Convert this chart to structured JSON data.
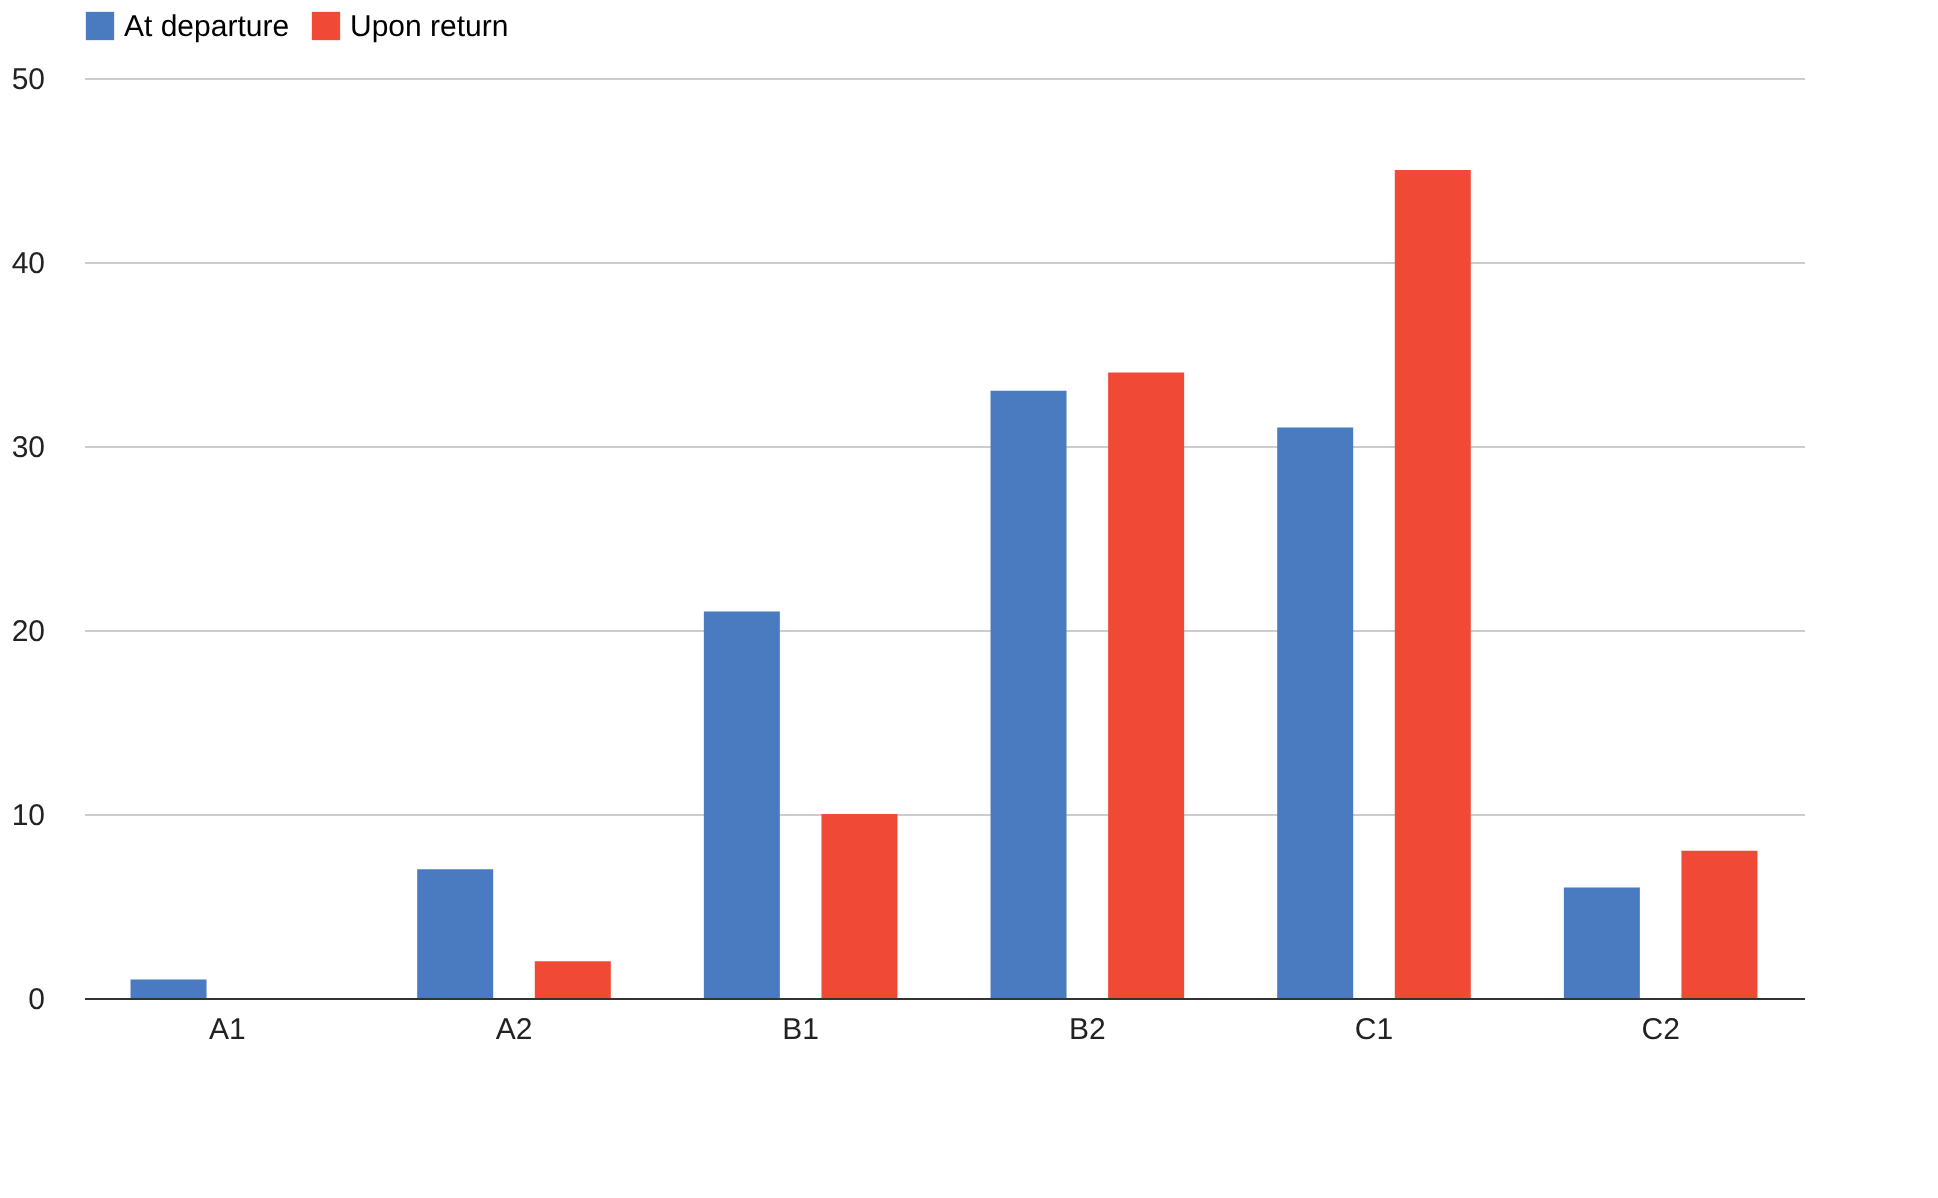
{
  "chart_data": {
    "type": "bar",
    "categories": [
      "A1",
      "A2",
      "B1",
      "B2",
      "C1",
      "C2"
    ],
    "series": [
      {
        "name": "At departure",
        "color": "#4a7bc0",
        "values": [
          1,
          7,
          21,
          33,
          31,
          6
        ]
      },
      {
        "name": "Upon return",
        "color": "#f04a36",
        "values": [
          0,
          2,
          10,
          34,
          45,
          8
        ]
      }
    ],
    "ylim": [
      0,
      50
    ],
    "yticks": [
      0,
      10,
      20,
      30,
      40,
      50
    ],
    "grid": "y",
    "legend": "top"
  }
}
